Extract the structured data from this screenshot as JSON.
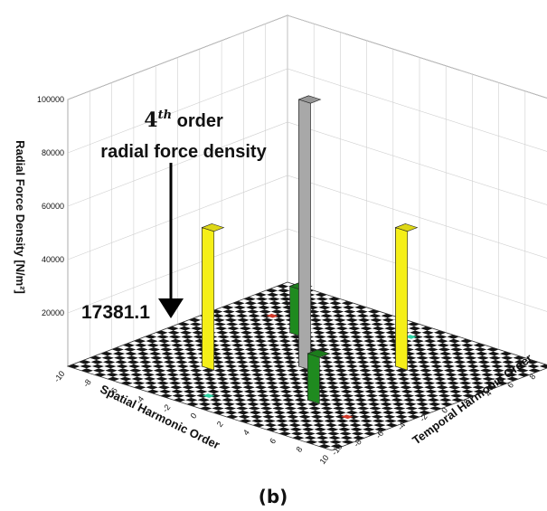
{
  "figure_label": "(b)",
  "chart_data": {
    "type": "bar3d",
    "xlabel": "Spatial Harmonic Order",
    "ylabel": "Temporal Harmonic Order",
    "zlabel": "Radial Force Density [N/m²]",
    "xlim": [
      -10,
      10
    ],
    "ylim": [
      -10,
      10
    ],
    "zlim": [
      0,
      100000
    ],
    "x_ticks": [
      -10,
      -8,
      -6,
      -4,
      -2,
      0,
      2,
      4,
      6,
      8,
      10
    ],
    "y_ticks": [
      -10,
      -8,
      -6,
      -4,
      -2,
      0,
      2,
      4,
      6,
      8,
      10
    ],
    "z_ticks": [
      20000,
      40000,
      60000,
      80000,
      100000
    ],
    "grid": true,
    "bars": [
      {
        "x": 0,
        "y": 0,
        "z": 100000,
        "color": "#a8a8a8"
      },
      {
        "x": -4,
        "y": -4,
        "z": 52000,
        "color": "#f5ef18"
      },
      {
        "x": 4,
        "y": 4,
        "z": 52000,
        "color": "#f5ef18"
      },
      {
        "x": -4,
        "y": 4,
        "z": 17381.1,
        "color": "#1f8a1f"
      },
      {
        "x": 4,
        "y": -4,
        "z": 17381.1,
        "color": "#1f8a1f"
      }
    ],
    "small_markers": [
      {
        "x": -7,
        "y": 5,
        "color": "#d23a2a"
      },
      {
        "x": 7,
        "y": -5,
        "color": "#d23a2a"
      },
      {
        "x": 1,
        "y": 8,
        "color": "#2ed3a3"
      },
      {
        "x": -1,
        "y": -8,
        "color": "#2ed3a3"
      }
    ],
    "annotations": {
      "label_order": "4",
      "label_sup": "th",
      "label_rest": " order",
      "label_line2": "radial force density",
      "value_label": "17381.1"
    }
  }
}
